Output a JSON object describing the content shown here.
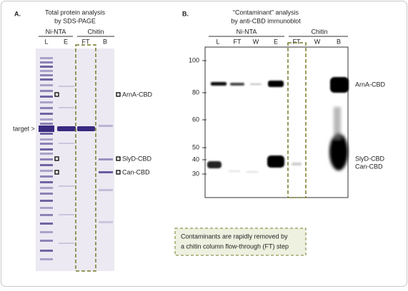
{
  "panel_a": {
    "letter": "A.",
    "title": [
      "Total protein analysis",
      "by SDS-PAGE"
    ],
    "groups": [
      "Ni-NTA",
      "Chitin"
    ],
    "lanes": [
      "L",
      "E",
      "FT",
      "B"
    ],
    "target": "target >",
    "labels": [
      "ArnA-CBD",
      "SlyD-CBD",
      "Can-CBD"
    ]
  },
  "panel_b": {
    "letter": "B.",
    "title": [
      "“Contaminant” analysis",
      "by anti-CBD immunoblot"
    ],
    "groups": [
      "Ni-NTA",
      "Chitin"
    ],
    "lanes": [
      "L",
      "FT",
      "W",
      "E",
      "FT",
      "W",
      "B"
    ],
    "markers": [
      "100",
      "80",
      "60",
      "50",
      "40",
      "30"
    ],
    "labels": [
      "ArnA-CBD",
      "SlyD-CBD",
      "Can-CBD"
    ]
  },
  "note": [
    "Contaminants are rapidly removed by",
    "a chitin column flow-through (FT) step"
  ]
}
